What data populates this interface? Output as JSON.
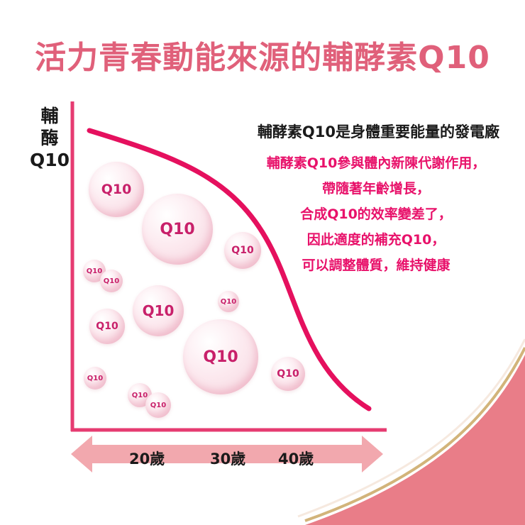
{
  "title": "活力青春動能來源的輔酵素Q10",
  "y_axis_label": [
    "輔",
    "酶",
    "Q10"
  ],
  "headline": "輔酵素Q10是身體重要能量的發電廠",
  "description_lines": [
    "輔酵素Q10參與體內新陳代謝作用，",
    "帶隨著年齡增長，",
    "合成Q10的效率變差了，",
    "因此適度的補充Q10，",
    "可以調整體質，維持健康"
  ],
  "x_axis_labels": [
    "20歲",
    "30歲",
    "40歲"
  ],
  "bubble_label": "Q10",
  "colors": {
    "title": "#e0607a",
    "accent": "#e8116a",
    "curve": "#e5105e",
    "axis": "#e63b71",
    "arrow": "#f0a8ad",
    "wave": "#e97d88",
    "gold": "#c9a76a"
  }
}
